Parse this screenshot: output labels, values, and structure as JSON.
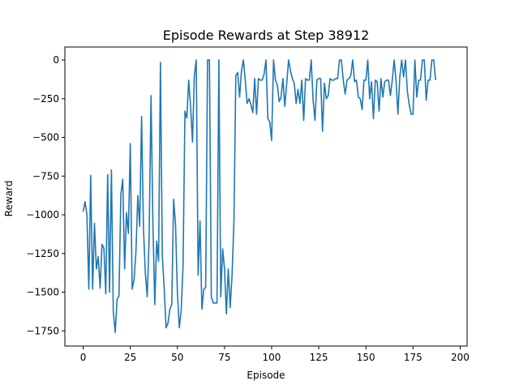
{
  "chart_data": {
    "type": "line",
    "title": "Episode Rewards at Step 38912",
    "xlabel": "Episode",
    "ylabel": "Reward",
    "xlim": [
      -9.7,
      203.7
    ],
    "ylim": [
      -1848,
      84
    ],
    "xticks": [
      0,
      25,
      50,
      75,
      100,
      125,
      150,
      175,
      200
    ],
    "yticks": [
      0,
      -250,
      -500,
      -750,
      -1000,
      -1250,
      -1500,
      -1750
    ],
    "grid": false,
    "color": "#1f77b4",
    "series": [
      {
        "values": [
          -980,
          -915,
          -1000,
          -1480,
          -745,
          -1480,
          -1055,
          -1350,
          -1270,
          -1475,
          -1190,
          -1215,
          -1510,
          -740,
          -1500,
          -710,
          -1630,
          -1760,
          -1545,
          -1525,
          -870,
          -770,
          -1350,
          -985,
          -1120,
          -540,
          -1480,
          -1420,
          -1240,
          -875,
          -1075,
          -365,
          -1090,
          -1380,
          -1530,
          -1150,
          -230,
          -1050,
          -1580,
          -1170,
          -1300,
          -15,
          -1260,
          -1480,
          -1730,
          -1700,
          -1610,
          -1580,
          -900,
          -1060,
          -1500,
          -1730,
          -1620,
          -1330,
          -330,
          -375,
          -130,
          -300,
          -530,
          -100,
          0,
          -1390,
          -1040,
          -1610,
          -1480,
          -1470,
          0,
          0,
          -1530,
          -1570,
          -1570,
          -1570,
          0,
          -1530,
          -1220,
          -1350,
          -1640,
          -1350,
          -1600,
          -1390,
          -1040,
          -100,
          -80,
          -240,
          -70,
          0,
          -130,
          -280,
          -250,
          -290,
          -340,
          -120,
          -350,
          -120,
          -130,
          -130,
          -90,
          0,
          -380,
          -400,
          -520,
          0,
          -130,
          -160,
          -270,
          -240,
          -120,
          -300,
          -150,
          0,
          -70,
          -120,
          -150,
          -280,
          -190,
          -280,
          -130,
          -390,
          -120,
          -130,
          -130,
          0,
          -260,
          -390,
          -130,
          -120,
          -120,
          -460,
          -150,
          -250,
          -230,
          -120,
          -130,
          -130,
          -120,
          -120,
          0,
          0,
          -130,
          -220,
          -130,
          -120,
          -100,
          0,
          -140,
          -130,
          -240,
          -250,
          -320,
          -130,
          -130,
          0,
          -250,
          -140,
          -380,
          -130,
          -140,
          -330,
          -120,
          -240,
          -140,
          -130,
          -130,
          -230,
          -130,
          0,
          -130,
          -350,
          -110,
          0,
          -110,
          0,
          -200,
          -290,
          -350,
          -350,
          0,
          -240,
          -130,
          -130,
          0,
          0,
          -260,
          -130,
          -130,
          0,
          0,
          -130
        ]
      }
    ]
  }
}
